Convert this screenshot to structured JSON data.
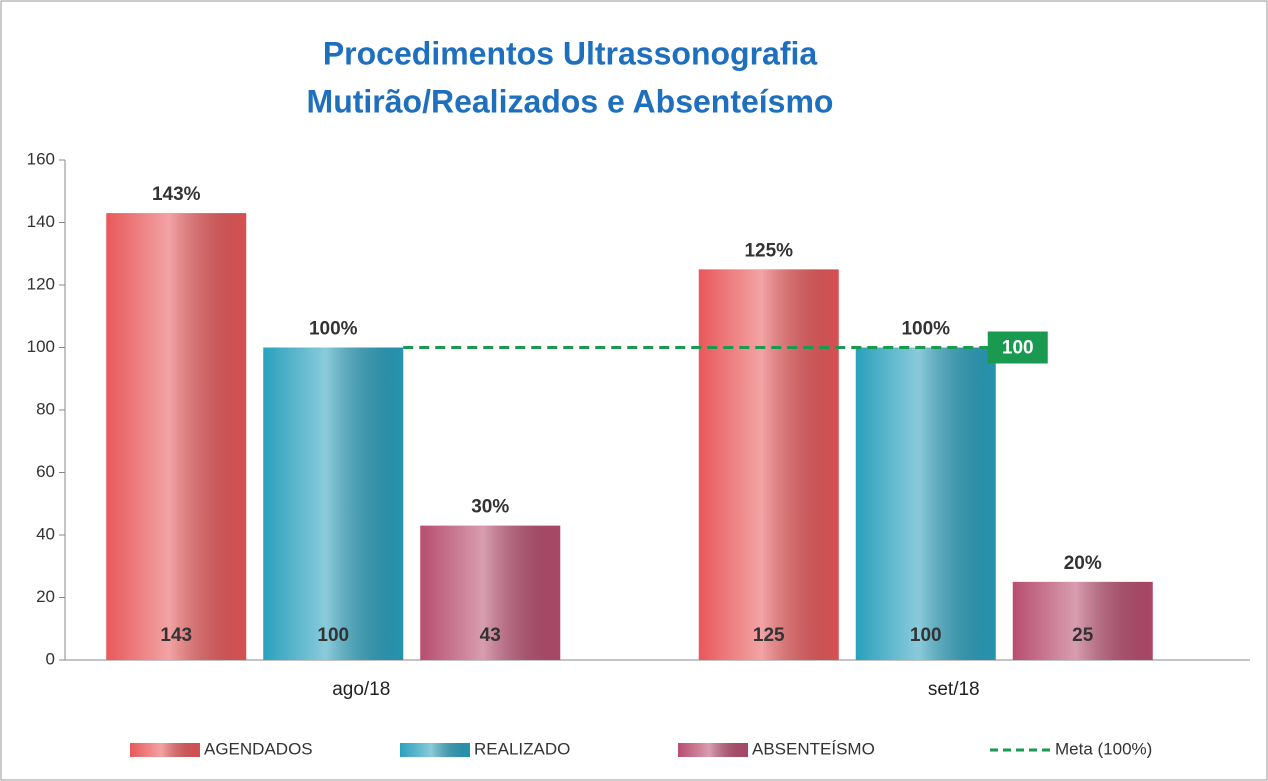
{
  "chart_data": {
    "type": "bar",
    "title": "Procedimentos Ultrassonografia",
    "subtitle": "Mutirão/Realizados e Absenteísmo",
    "categories": [
      "ago/18",
      "set/18"
    ],
    "series": [
      {
        "name": "AGENDADOS",
        "color": "#e8585a",
        "values": [
          143,
          125
        ],
        "percent_labels": [
          "143%",
          "125%"
        ]
      },
      {
        "name": "REALIZADO",
        "color": "#2aa0bd",
        "values": [
          100,
          100
        ],
        "percent_labels": [
          "100%",
          "100%"
        ]
      },
      {
        "name": "ABSENTEÍSMO",
        "color": "#b84d6f",
        "values": [
          43,
          25
        ],
        "percent_labels": [
          "30%",
          "20%"
        ]
      }
    ],
    "reference_line": {
      "name": "Meta (100%)",
      "value": 100,
      "color": "#1a9a50"
    },
    "ylim": [
      0,
      160
    ],
    "yticks": [
      0,
      20,
      40,
      60,
      80,
      100,
      120,
      140,
      160
    ],
    "legend": "bottom"
  }
}
